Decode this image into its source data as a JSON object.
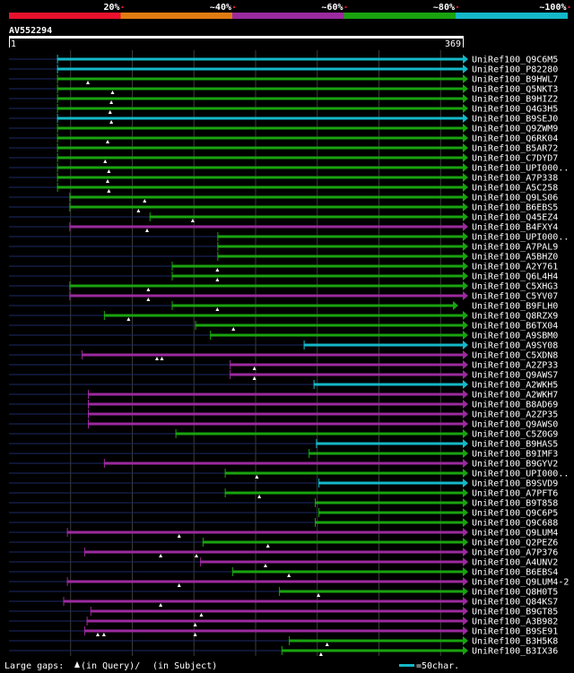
{
  "chart_data": {
    "type": "alignment-overview",
    "query_id": "AV552294",
    "query_start": "1",
    "query_end": "369",
    "query_length": 369,
    "identity_legend": [
      {
        "label": "20%",
        "color": "#e8112d"
      },
      {
        "label": "~40%",
        "color": "#e07b12"
      },
      {
        "label": "~60%",
        "color": "#9b2a9e"
      },
      {
        "label": "~80%",
        "color": "#19a30f"
      },
      {
        "label": "~100%",
        "color": "#14b8c8"
      }
    ],
    "hits": [
      {
        "id": "UniRef100_Q9C6M5",
        "start": 40,
        "end": 369,
        "identity": "~100%",
        "gaps": []
      },
      {
        "id": "UniRef100_P82280",
        "start": 40,
        "end": 369,
        "identity": "~100%",
        "gaps": []
      },
      {
        "id": "UniRef100_B9HWL7",
        "start": 40,
        "end": 369,
        "identity": "~80%",
        "gaps": [
          65
        ]
      },
      {
        "id": "UniRef100_Q5NKT3",
        "start": 40,
        "end": 369,
        "identity": "~80%",
        "gaps": [
          85
        ]
      },
      {
        "id": "UniRef100_B9HIZ2",
        "start": 40,
        "end": 369,
        "identity": "~80%",
        "gaps": [
          84
        ]
      },
      {
        "id": "UniRef100_Q4G3H5",
        "start": 40,
        "end": 369,
        "identity": "~80%",
        "gaps": [
          83
        ]
      },
      {
        "id": "UniRef100_B9SEJ0",
        "start": 40,
        "end": 369,
        "identity": "~100%",
        "gaps": [
          84
        ]
      },
      {
        "id": "UniRef100_Q9ZWM9",
        "start": 40,
        "end": 369,
        "identity": "~80%",
        "gaps": []
      },
      {
        "id": "UniRef100_Q6RK04",
        "start": 40,
        "end": 369,
        "identity": "~80%",
        "gaps": [
          81
        ]
      },
      {
        "id": "UniRef100_B5AR72",
        "start": 40,
        "end": 369,
        "identity": "~80%",
        "gaps": []
      },
      {
        "id": "UniRef100_C7DYD7",
        "start": 40,
        "end": 369,
        "identity": "~80%",
        "gaps": [
          79
        ]
      },
      {
        "id": "UniRef100_UPI000..",
        "start": 40,
        "end": 369,
        "identity": "~80%",
        "gaps": [
          82
        ]
      },
      {
        "id": "UniRef100_A7P338",
        "start": 40,
        "end": 369,
        "identity": "~80%",
        "gaps": [
          81
        ]
      },
      {
        "id": "UniRef100_A5C258",
        "start": 40,
        "end": 369,
        "identity": "~80%",
        "gaps": [
          82
        ]
      },
      {
        "id": "UniRef100_Q9LS06",
        "start": 50,
        "end": 369,
        "identity": "~80%",
        "gaps": [
          111
        ]
      },
      {
        "id": "UniRef100_B6EBS5",
        "start": 50,
        "end": 369,
        "identity": "~80%",
        "gaps": [
          106
        ]
      },
      {
        "id": "UniRef100_Q45EZ4",
        "start": 115,
        "end": 369,
        "identity": "~80%",
        "gaps": [
          150
        ]
      },
      {
        "id": "UniRef100_B4FXY4",
        "start": 50,
        "end": 369,
        "identity": "~60%",
        "gaps": [
          113
        ]
      },
      {
        "id": "UniRef100_UPI000..",
        "start": 170,
        "end": 369,
        "identity": "~80%",
        "gaps": []
      },
      {
        "id": "UniRef100_A7PAL9",
        "start": 170,
        "end": 369,
        "identity": "~80%",
        "gaps": []
      },
      {
        "id": "UniRef100_A5BHZ0",
        "start": 170,
        "end": 369,
        "identity": "~80%",
        "gaps": []
      },
      {
        "id": "UniRef100_A2Y761",
        "start": 133,
        "end": 369,
        "identity": "~80%",
        "gaps": [
          170
        ]
      },
      {
        "id": "UniRef100_Q6L4H4",
        "start": 133,
        "end": 369,
        "identity": "~80%",
        "gaps": [
          170
        ]
      },
      {
        "id": "UniRef100_C5XHG3",
        "start": 50,
        "end": 369,
        "identity": "~80%",
        "gaps": [
          114
        ]
      },
      {
        "id": "UniRef100_C5YV07",
        "start": 50,
        "end": 369,
        "identity": "~60%",
        "gaps": [
          114
        ]
      },
      {
        "id": "UniRef100_B9FLH0",
        "start": 133,
        "end": 361,
        "identity": "~80%",
        "gaps": [
          170
        ]
      },
      {
        "id": "UniRef100_Q8RZX9",
        "start": 78,
        "end": 369,
        "identity": "~80%",
        "gaps": [
          98
        ]
      },
      {
        "id": "UniRef100_B6TX04",
        "start": 152,
        "end": 369,
        "identity": "~80%",
        "gaps": [
          183
        ]
      },
      {
        "id": "UniRef100_A9SBM0",
        "start": 164,
        "end": 369,
        "identity": "~80%",
        "gaps": []
      },
      {
        "id": "UniRef100_A9SY08",
        "start": 240,
        "end": 369,
        "identity": "~100%",
        "gaps": []
      },
      {
        "id": "UniRef100_C5XDN8",
        "start": 60,
        "end": 369,
        "identity": "~60%",
        "gaps": [
          121,
          125
        ]
      },
      {
        "id": "UniRef100_A2ZP33",
        "start": 180,
        "end": 369,
        "identity": "~60%",
        "gaps": [
          200
        ]
      },
      {
        "id": "UniRef100_Q9AWS7",
        "start": 180,
        "end": 369,
        "identity": "~60%",
        "gaps": [
          200
        ]
      },
      {
        "id": "UniRef100_A2WKH5",
        "start": 248,
        "end": 369,
        "identity": "~100%",
        "gaps": []
      },
      {
        "id": "UniRef100_A2WKH7",
        "start": 65,
        "end": 369,
        "identity": "~60%",
        "gaps": []
      },
      {
        "id": "UniRef100_B8AD69",
        "start": 65,
        "end": 369,
        "identity": "~60%",
        "gaps": []
      },
      {
        "id": "UniRef100_A2ZP35",
        "start": 65,
        "end": 369,
        "identity": "~60%",
        "gaps": []
      },
      {
        "id": "UniRef100_Q9AWS0",
        "start": 65,
        "end": 369,
        "identity": "~60%",
        "gaps": []
      },
      {
        "id": "UniRef100_C5Z0G9",
        "start": 136,
        "end": 369,
        "identity": "~80%",
        "gaps": []
      },
      {
        "id": "UniRef100_B9HAS5",
        "start": 250,
        "end": 369,
        "identity": "~100%",
        "gaps": []
      },
      {
        "id": "UniRef100_B9IMF3",
        "start": 244,
        "end": 369,
        "identity": "~80%",
        "gaps": []
      },
      {
        "id": "UniRef100_B9GYV2",
        "start": 78,
        "end": 369,
        "identity": "~60%",
        "gaps": []
      },
      {
        "id": "UniRef100_UPI000..",
        "start": 176,
        "end": 369,
        "identity": "~80%",
        "gaps": [
          202
        ]
      },
      {
        "id": "UniRef100_B9SVD9",
        "start": 252,
        "end": 369,
        "identity": "~100%",
        "gaps": []
      },
      {
        "id": "UniRef100_A7PFT6",
        "start": 176,
        "end": 369,
        "identity": "~80%",
        "gaps": [
          204
        ]
      },
      {
        "id": "UniRef100_B9T858",
        "start": 249,
        "end": 369,
        "identity": "~80%",
        "gaps": []
      },
      {
        "id": "UniRef100_Q9C6P5",
        "start": 252,
        "end": 369,
        "identity": "~80%",
        "gaps": []
      },
      {
        "id": "UniRef100_Q9C688",
        "start": 249,
        "end": 369,
        "identity": "~80%",
        "gaps": []
      },
      {
        "id": "UniRef100_Q9LUM4",
        "start": 48,
        "end": 369,
        "identity": "~60%",
        "gaps": [
          139
        ]
      },
      {
        "id": "UniRef100_Q2PEZ6",
        "start": 158,
        "end": 369,
        "identity": "~80%",
        "gaps": [
          211
        ]
      },
      {
        "id": "UniRef100_A7P376",
        "start": 62,
        "end": 369,
        "identity": "~60%",
        "gaps": [
          124,
          153
        ]
      },
      {
        "id": "UniRef100_A4UNV2",
        "start": 156,
        "end": 369,
        "identity": "~60%",
        "gaps": [
          209
        ]
      },
      {
        "id": "UniRef100_B6EBS4",
        "start": 182,
        "end": 369,
        "identity": "~80%",
        "gaps": [
          228
        ]
      },
      {
        "id": "UniRef100_Q9LUM4-2",
        "start": 48,
        "end": 369,
        "identity": "~60%",
        "gaps": [
          139
        ]
      },
      {
        "id": "UniRef100_Q8H0T5",
        "start": 220,
        "end": 369,
        "identity": "~80%",
        "gaps": [
          252
        ]
      },
      {
        "id": "UniRef100_Q84KS7",
        "start": 45,
        "end": 369,
        "identity": "~60%",
        "gaps": [
          124
        ]
      },
      {
        "id": "UniRef100_B9GT85",
        "start": 67,
        "end": 369,
        "identity": "~60%",
        "gaps": [
          157
        ]
      },
      {
        "id": "UniRef100_A3B982",
        "start": 64,
        "end": 369,
        "identity": "~60%",
        "gaps": [
          152
        ]
      },
      {
        "id": "UniRef100_B9SE91",
        "start": 62,
        "end": 369,
        "identity": "~60%",
        "gaps": [
          73,
          78,
          152
        ]
      },
      {
        "id": "UniRef100_B3H5K8",
        "start": 228,
        "end": 369,
        "identity": "~80%",
        "gaps": [
          259
        ]
      },
      {
        "id": "UniRef100_B3IX36",
        "start": 222,
        "end": 369,
        "identity": "~80%",
        "gaps": [
          254
        ]
      }
    ],
    "footer": {
      "gaps_text_1": "Large gaps: ",
      "gaps_text_2": "(in Query)/",
      "gaps_text_3": "(in Subject)",
      "scale_text": "=50char."
    }
  }
}
